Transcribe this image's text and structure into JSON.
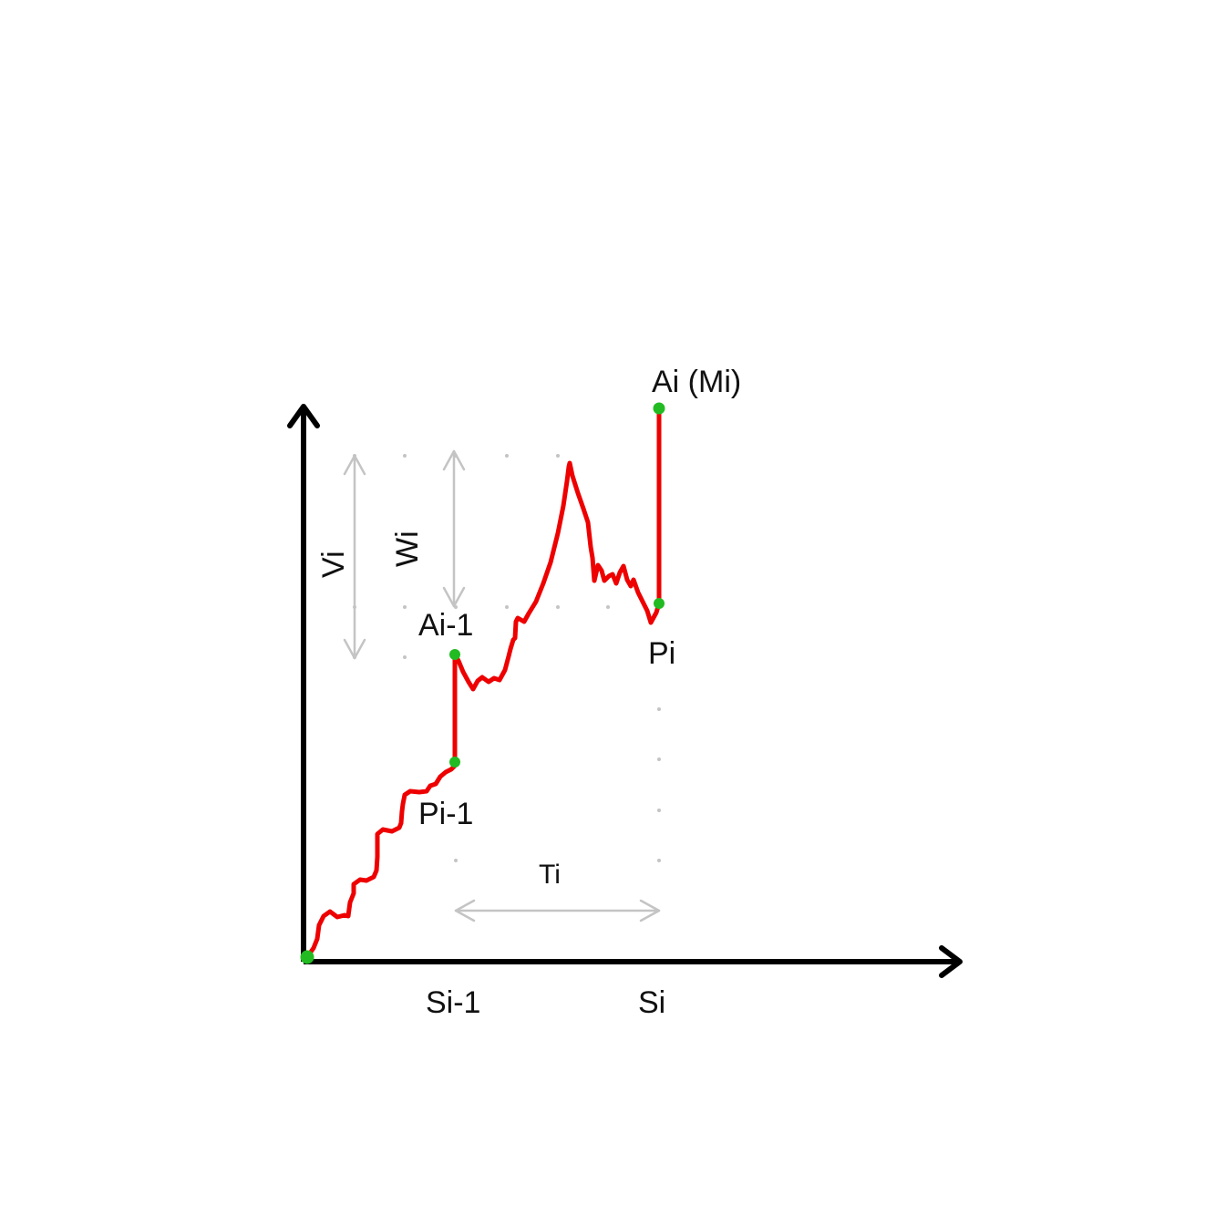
{
  "labels": {
    "point_a_prev": "Ai-1",
    "point_p_prev": "Pi-1",
    "point_a_curr": "Ai (Mi)",
    "point_p_curr": "Pi",
    "tick_s_prev": "Si-1",
    "tick_s_curr": "Si",
    "span_v": "Vi",
    "span_w": "Wi",
    "span_t": "Ti"
  },
  "colors": {
    "axis": "#000000",
    "curve": "#ee0000",
    "marker": "#22bb22",
    "guide": "#c4c4c4",
    "text": "#111111"
  },
  "icons": {
    "y_axis_head": "chevron-up-icon",
    "x_axis_head": "chevron-right-icon",
    "span_arrow": "double-arrow-icon"
  }
}
